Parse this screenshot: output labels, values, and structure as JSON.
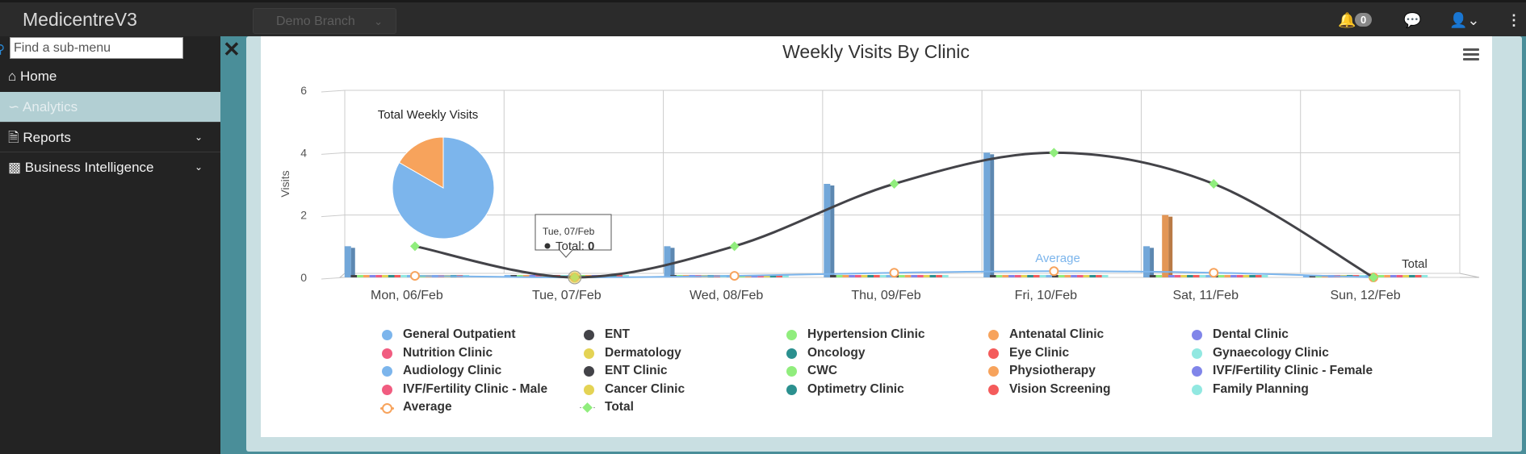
{
  "app": {
    "brand": "MedicentreV3",
    "branch": "Demo Branch",
    "notifications": "0"
  },
  "sidebar": {
    "search_placeholder": "Find a sub-menu",
    "items": [
      {
        "label": "Home",
        "icon": "home-icon"
      },
      {
        "label": "Analytics",
        "icon": "area-chart-icon"
      },
      {
        "label": "Reports",
        "icon": "file-icon"
      },
      {
        "label": "Business Intelligence",
        "icon": "bar-chart-icon"
      }
    ]
  },
  "chart_data": {
    "type": "bar",
    "title": "Weekly Visits By Clinic",
    "ylabel": "Visits",
    "xlabel": "",
    "ylim": [
      0,
      6
    ],
    "yticks": [
      0,
      2,
      4,
      6
    ],
    "categories": [
      "Mon, 06/Feb",
      "Tue, 07/Feb",
      "Wed, 08/Feb",
      "Thu, 09/Feb",
      "Fri, 10/Feb",
      "Sat, 11/Feb",
      "Sun, 12/Feb"
    ],
    "grid": true,
    "legend_position": "bottom",
    "series": [
      {
        "name": "General Outpatient",
        "color": "#7cb5ec",
        "values": [
          1,
          0,
          1,
          3,
          4,
          1,
          0
        ]
      },
      {
        "name": "ENT",
        "color": "#434348",
        "values": [
          0,
          0,
          0,
          0,
          0,
          0,
          0
        ]
      },
      {
        "name": "Hypertension Clinic",
        "color": "#90ed7d",
        "values": [
          0,
          0,
          0,
          0,
          0,
          0,
          0
        ]
      },
      {
        "name": "Antenatal Clinic",
        "color": "#f7a35c",
        "values": [
          0,
          0,
          0,
          0,
          0,
          2,
          0
        ]
      },
      {
        "name": "Dental Clinic",
        "color": "#8085e9",
        "values": [
          0,
          0,
          0,
          0,
          0,
          0,
          0
        ]
      },
      {
        "name": "Nutrition Clinic",
        "color": "#f15c80",
        "values": [
          0,
          0,
          0,
          0,
          0,
          0,
          0
        ]
      },
      {
        "name": "Dermatology",
        "color": "#e4d354",
        "values": [
          0,
          0,
          0,
          0,
          0,
          0,
          0
        ]
      },
      {
        "name": "Oncology",
        "color": "#2b908f",
        "values": [
          0,
          0,
          0,
          0,
          0,
          0,
          0
        ]
      },
      {
        "name": "Eye Clinic",
        "color": "#f45b5b",
        "values": [
          0,
          0,
          0,
          0,
          0,
          0,
          0
        ]
      },
      {
        "name": "Gynaecology Clinic",
        "color": "#91e8e1",
        "values": [
          0,
          0,
          0,
          0,
          0,
          0,
          0
        ]
      },
      {
        "name": "Audiology Clinic",
        "color": "#7cb5ec",
        "values": [
          0,
          0,
          0,
          0,
          0,
          0,
          0
        ]
      },
      {
        "name": "ENT Clinic",
        "color": "#434348",
        "values": [
          0,
          0,
          0,
          0,
          0,
          0,
          0
        ]
      },
      {
        "name": "CWC",
        "color": "#90ed7d",
        "values": [
          0,
          0,
          0,
          0,
          0,
          0,
          0
        ]
      },
      {
        "name": "Physiotherapy",
        "color": "#f7a35c",
        "values": [
          0,
          0,
          0,
          0,
          0,
          0,
          0
        ]
      },
      {
        "name": "IVF/Fertility Clinic - Female",
        "color": "#8085e9",
        "values": [
          0,
          0,
          0,
          0,
          0,
          0,
          0
        ]
      },
      {
        "name": "IVF/Fertility Clinic - Male",
        "color": "#f15c80",
        "values": [
          0,
          0,
          0,
          0,
          0,
          0,
          0
        ]
      },
      {
        "name": "Cancer Clinic",
        "color": "#e4d354",
        "values": [
          0,
          0,
          0,
          0,
          0,
          0,
          0
        ]
      },
      {
        "name": "Optimetry Clinic",
        "color": "#2b908f",
        "values": [
          0,
          0,
          0,
          0,
          0,
          0,
          0
        ]
      },
      {
        "name": "Vision Screening",
        "color": "#f45b5b",
        "values": [
          0,
          0,
          0,
          0,
          0,
          0,
          0
        ]
      },
      {
        "name": "Family Planning",
        "color": "#91e8e1",
        "values": [
          0,
          0,
          0,
          0,
          0,
          0,
          0
        ]
      }
    ],
    "lines": [
      {
        "name": "Average",
        "color": "#f7a35c",
        "values": [
          0.05,
          0,
          0.05,
          0.15,
          0.2,
          0.15,
          0
        ]
      },
      {
        "name": "Total",
        "color": "#434348",
        "values": [
          1,
          0,
          1,
          3,
          4,
          3,
          0
        ]
      }
    ],
    "annotations": [
      {
        "text": "Average",
        "color": "#7cb5ec"
      },
      {
        "text": "Total",
        "color": "#333"
      }
    ],
    "tooltip": {
      "header": "Tue, 07/Feb",
      "label": "Total",
      "value": "0"
    },
    "pie": {
      "title": "Total Weekly Visits",
      "slices": [
        {
          "name": "General Outpatient",
          "value": 10,
          "color": "#7cb5ec"
        },
        {
          "name": "Antenatal Clinic",
          "value": 2,
          "color": "#f7a35c"
        }
      ]
    }
  }
}
